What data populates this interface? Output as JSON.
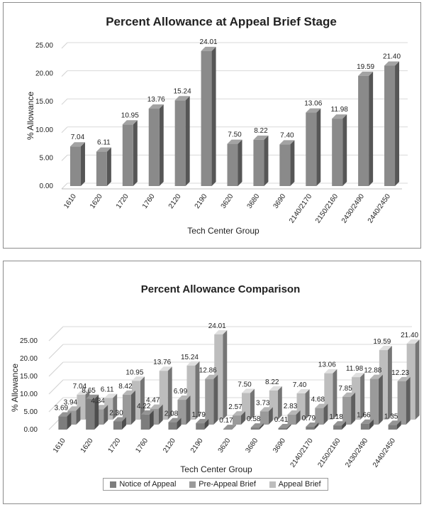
{
  "chart_data": [
    {
      "type": "bar",
      "title": "Percent Allowance at Appeal Brief Stage",
      "xlabel": "Tech Center Group",
      "ylabel": "% Allowance",
      "ylim": [
        0,
        25
      ],
      "yticks": [
        "0.00",
        "5.00",
        "10.00",
        "15.00",
        "20.00",
        "25.00"
      ],
      "grid": true,
      "categories": [
        "1610",
        "1620",
        "1720",
        "1760",
        "2120",
        "2190",
        "3620",
        "3680",
        "3690",
        "2140/2170",
        "2150/2160",
        "2430/2490",
        "2440/2450"
      ],
      "values": [
        7.04,
        6.11,
        10.95,
        13.76,
        15.24,
        24.01,
        7.5,
        8.22,
        7.4,
        13.06,
        11.98,
        19.59,
        21.4
      ],
      "data_labels": [
        "7.04",
        "6.11",
        "10.95",
        "13.76",
        "15.24",
        "24.01",
        "7.50",
        "8.22",
        "7.40",
        "13.06",
        "11.98",
        "19.59",
        "21.40"
      ],
      "bar_color": "#8a8a8a"
    },
    {
      "type": "bar",
      "title": "Percent Allowance Comparison",
      "xlabel": "Tech Center Group",
      "ylabel": "% Allowance",
      "ylim": [
        0,
        25
      ],
      "yticks": [
        "0.00",
        "5.00",
        "10.00",
        "15.00",
        "20.00",
        "25.00"
      ],
      "grid": true,
      "legend_position": "bottom",
      "categories": [
        "1610",
        "1620",
        "1720",
        "1760",
        "2120",
        "2190",
        "3620",
        "3680",
        "3690",
        "2140/2170",
        "2150/2160",
        "2430/2490",
        "2440/2450"
      ],
      "series": [
        {
          "name": "Notice of Appeal",
          "color": "#7d7d7d",
          "values": [
            3.69,
            8.65,
            2.3,
            4.22,
            2.08,
            1.79,
            0.17,
            0.58,
            0.41,
            0.79,
            1.18,
            1.66,
            1.35
          ],
          "labels": [
            "3.69",
            "8.65",
            "2.30",
            "4.22",
            "2.08",
            "1.79",
            "0.17",
            "0.58",
            "0.41",
            "0.79",
            "1.18",
            "1.66",
            "1.35"
          ]
        },
        {
          "name": "Pre-Appeal Brief",
          "color": "#9a9a9a",
          "values": [
            3.94,
            4.34,
            8.42,
            4.47,
            6.99,
            12.86,
            2.57,
            3.73,
            2.83,
            4.68,
            7.85,
            12.88,
            12.23
          ],
          "labels": [
            "3.94",
            "4.34",
            "8.42",
            "4.47",
            "6.99",
            "12.86",
            "2.57",
            "3.73",
            "2.83",
            "4.68",
            "7.85",
            "12.88",
            "12.23"
          ]
        },
        {
          "name": "Appeal Brief",
          "color": "#bdbdbd",
          "values": [
            7.04,
            6.11,
            10.95,
            13.76,
            15.24,
            24.01,
            7.5,
            8.22,
            7.4,
            13.06,
            11.98,
            19.59,
            21.4
          ],
          "labels": [
            "7.04",
            "6.11",
            "10.95",
            "13.76",
            "15.24",
            "24.01",
            "7.50",
            "8.22",
            "7.40",
            "13.06",
            "11.98",
            "19.59",
            "21.40"
          ]
        }
      ]
    }
  ]
}
